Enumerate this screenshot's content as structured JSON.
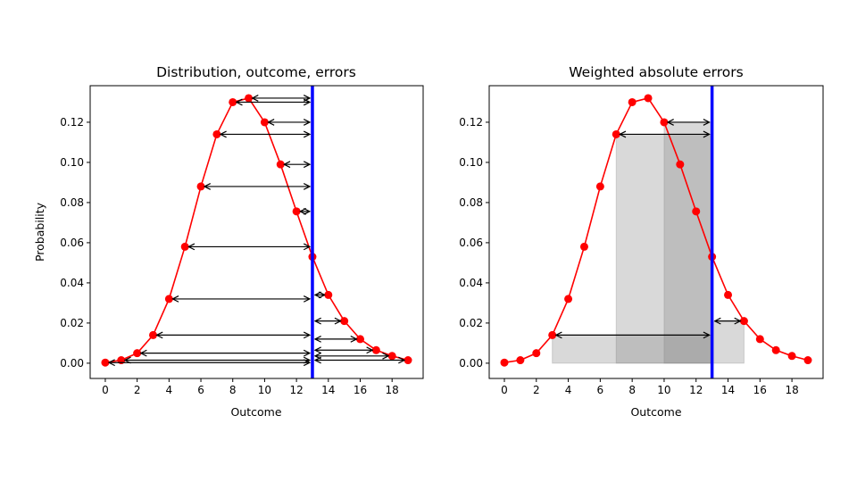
{
  "chart_data": [
    {
      "type": "line",
      "title": "Distribution, outcome, errors",
      "xlabel": "Outcome",
      "ylabel": "Probability",
      "x": [
        0,
        1,
        2,
        3,
        4,
        5,
        6,
        7,
        8,
        9,
        10,
        11,
        12,
        13,
        14,
        15,
        16,
        17,
        18,
        19
      ],
      "y": [
        0.0003,
        0.0015,
        0.005,
        0.014,
        0.032,
        0.058,
        0.088,
        0.114,
        0.13,
        0.132,
        0.12,
        0.099,
        0.0756,
        0.053,
        0.034,
        0.021,
        0.012,
        0.0065,
        0.0036,
        0.0015
      ],
      "xticks": [
        "0",
        "2",
        "4",
        "6",
        "8",
        "10",
        "12",
        "14",
        "16",
        "18"
      ],
      "yticks": [
        "0.00",
        "0.02",
        "0.04",
        "0.06",
        "0.08",
        "0.10",
        "0.12"
      ],
      "xlim": [
        -0.95,
        19.95
      ],
      "ylim": [
        -0.0076,
        0.1382
      ],
      "outcome": 13,
      "series_color": "#ff0000",
      "outcome_color": "#0000ff",
      "arrows": "each point to outcome line",
      "grid": false
    },
    {
      "type": "line",
      "title": "Weighted absolute errors",
      "xlabel": "Outcome",
      "ylabel": "",
      "x": [
        0,
        1,
        2,
        3,
        4,
        5,
        6,
        7,
        8,
        9,
        10,
        11,
        12,
        13,
        14,
        15,
        16,
        17,
        18,
        19
      ],
      "y": [
        0.0003,
        0.0015,
        0.005,
        0.014,
        0.032,
        0.058,
        0.088,
        0.114,
        0.13,
        0.132,
        0.12,
        0.099,
        0.0756,
        0.053,
        0.034,
        0.021,
        0.012,
        0.0065,
        0.0036,
        0.0015
      ],
      "xticks": [
        "0",
        "2",
        "4",
        "6",
        "8",
        "10",
        "12",
        "14",
        "16",
        "18"
      ],
      "yticks": [
        "0.00",
        "0.02",
        "0.04",
        "0.06",
        "0.08",
        "0.10",
        "0.12"
      ],
      "xlim": [
        -0.95,
        19.95
      ],
      "ylim": [
        -0.0076,
        0.1382
      ],
      "outcome": 13,
      "series_color": "#ff0000",
      "outcome_color": "#0000ff",
      "rectangles": [
        {
          "x0": 3,
          "x1": 13,
          "height": 0.014
        },
        {
          "x0": 7,
          "x1": 13,
          "height": 0.114
        },
        {
          "x0": 10,
          "x1": 13,
          "height": 0.12
        },
        {
          "x0": 13,
          "x1": 15,
          "height": 0.021
        }
      ],
      "grid": false
    }
  ]
}
